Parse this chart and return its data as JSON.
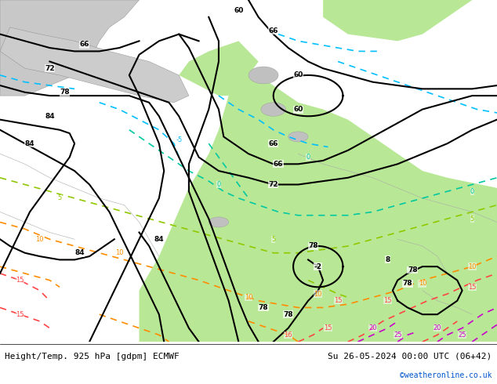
{
  "title_left": "Height/Temp. 925 hPa [gdpm] ECMWF",
  "title_right": "Su 26-05-2024 00:00 UTC (06+42)",
  "credit": "©weatheronline.co.uk",
  "bg_map_color": "#c8c8c8",
  "land_green_color": "#b8e896",
  "figsize": [
    6.34,
    4.9
  ],
  "dpi": 100,
  "black_contour_color": "#000000",
  "cyan_temp_color": "#00bfff",
  "teal_temp_color": "#00c8a0",
  "lime_temp_color": "#90c800",
  "orange_temp_color": "#ff8c00",
  "red_temp_color": "#ff4444",
  "magenta_temp_color": "#cc00cc",
  "title_fontsize": 8,
  "label_fontsize": 6.5
}
